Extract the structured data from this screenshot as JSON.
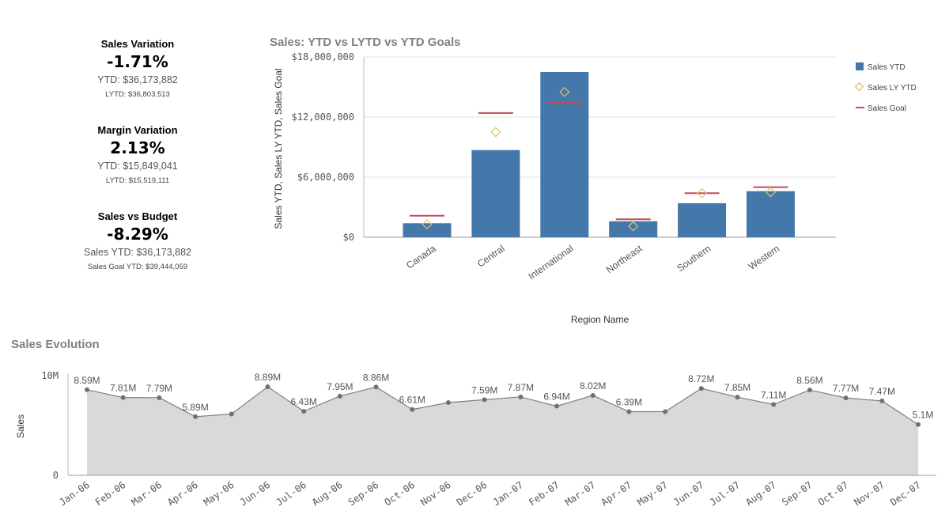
{
  "kpis": [
    {
      "title": "Sales Variation",
      "value": "-1.71%",
      "line1": "YTD: $36,173,882",
      "line2": "LYTD: $36,803,513"
    },
    {
      "title": "Margin Variation",
      "value": "2.13%",
      "line1": "YTD: $15,849,041",
      "line2": "LYTD: $15,519,111"
    },
    {
      "title": "Sales vs Budget",
      "value": "-8.29%",
      "line1": "Sales YTD: $36,173,882",
      "line2": "Sales Goal YTD: $39,444,059"
    }
  ],
  "colors": {
    "bar": "#4477aa",
    "diamond": "#e0c16c",
    "goal": "#c44b5a",
    "area": "#d9d9d9",
    "line": "#7f7f7f"
  },
  "chart_data": [
    {
      "type": "bar",
      "title": "Sales: YTD vs LYTD vs YTD Goals",
      "xlabel": "Region Name",
      "ylabel": "Sales YTD, Sales LY YTD, Sales Goal",
      "categories": [
        "Canada",
        "Central",
        "International",
        "Northeast",
        "Southern",
        "Western"
      ],
      "ylim": [
        0,
        18000000
      ],
      "yticks": [
        0,
        6000000,
        12000000,
        18000000
      ],
      "ytick_labels": [
        "$0",
        "$6,000,000",
        "$12,000,000",
        "$18,000,000"
      ],
      "legend": [
        "Sales YTD",
        "Sales LY YTD",
        "Sales Goal"
      ],
      "legend_position": "right",
      "series": [
        {
          "name": "Sales YTD",
          "kind": "bar",
          "values": [
            1400000,
            8700000,
            16500000,
            1600000,
            3400000,
            4600000
          ]
        },
        {
          "name": "Sales LY YTD",
          "kind": "marker",
          "values": [
            1300000,
            10500000,
            14500000,
            1100000,
            4400000,
            4500000
          ]
        },
        {
          "name": "Sales Goal",
          "kind": "line-marker",
          "values": [
            2150000,
            12400000,
            13500000,
            1800000,
            4400000,
            5000000
          ]
        }
      ]
    },
    {
      "type": "area",
      "title": "Sales Evolution",
      "xlabel": "",
      "ylabel": "Sales",
      "ylim": [
        0,
        10000000
      ],
      "yticks": [
        0,
        10000000
      ],
      "ytick_labels": [
        "0",
        "10M"
      ],
      "x": [
        "Jan-06",
        "Feb-06",
        "Mar-06",
        "Apr-06",
        "May-06",
        "Jun-06",
        "Jul-06",
        "Aug-06",
        "Sep-06",
        "Oct-06",
        "Nov-06",
        "Dec-06",
        "Jan-07",
        "Feb-07",
        "Mar-07",
        "Apr-07",
        "May-07",
        "Jun-07",
        "Jul-07",
        "Aug-07",
        "Sep-07",
        "Oct-07",
        "Nov-07",
        "Dec-07"
      ],
      "values": [
        8590000,
        7810000,
        7790000,
        5890000,
        6150000,
        8890000,
        6430000,
        7950000,
        8860000,
        6610000,
        7300000,
        7590000,
        7870000,
        6940000,
        8020000,
        6390000,
        6390000,
        8720000,
        7850000,
        7110000,
        8560000,
        7770000,
        7470000,
        5100000
      ],
      "labels": [
        "8.59M",
        "7.81M",
        "7.79M",
        "5.89M",
        "",
        "8.89M",
        "6.43M",
        "7.95M",
        "8.86M",
        "6.61M",
        "",
        "7.59M",
        "7.87M",
        "6.94M",
        "8.02M",
        "6.39M",
        "",
        "8.72M",
        "7.85M",
        "7.11M",
        "8.56M",
        "7.77M",
        "7.47M",
        "5.1M"
      ]
    }
  ]
}
